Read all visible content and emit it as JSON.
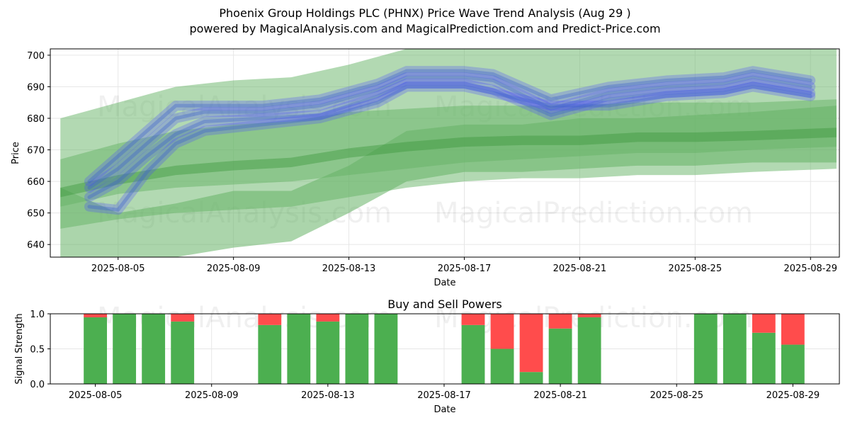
{
  "header": {
    "title_line1": "Phoenix Group Holdings PLC (PHNX) Price Wave Trend Analysis (Aug 29 )",
    "title_line2": "powered by MagicalAnalysis.com and MagicalPrediction.com and Predict-Price.com"
  },
  "watermarks": [
    "MagicalAnalysis.com",
    "MagicalPrediction.com"
  ],
  "colors": {
    "bull": "#4caf50",
    "bear": "#ff4c4c",
    "band": "#66b366",
    "wave": "#4a4aff"
  },
  "chart_data": [
    {
      "type": "area",
      "title": "",
      "xlabel": "Date",
      "ylabel": "Price",
      "ylim": [
        636,
        702
      ],
      "grid": true,
      "x_ticks": [
        "2025-08-05",
        "2025-08-09",
        "2025-08-13",
        "2025-08-17",
        "2025-08-21",
        "2025-08-25",
        "2025-08-29"
      ],
      "y_ticks": [
        640,
        650,
        660,
        670,
        680,
        690,
        700
      ],
      "bands": [
        {
          "name": "",
          "x": [
            "2025-08-03",
            "2025-08-05",
            "2025-08-07",
            "2025-08-09",
            "2025-08-11",
            "2025-08-13",
            "2025-08-15",
            "2025-08-17",
            "2025-08-19",
            "2025-08-21",
            "2025-08-23",
            "2025-08-25",
            "2025-08-27",
            "2025-08-29.9"
          ],
          "upper": [
            680,
            685,
            690,
            692,
            693,
            697,
            702,
            702,
            702,
            702,
            702,
            702,
            702,
            702
          ],
          "lower": [
            652,
            656,
            658,
            659,
            660,
            662,
            664,
            666,
            667,
            668,
            669,
            669,
            670,
            671
          ]
        },
        {
          "name": "",
          "x": [
            "2025-08-03",
            "2025-08-05",
            "2025-08-07",
            "2025-08-09",
            "2025-08-11",
            "2025-08-13",
            "2025-08-15",
            "2025-08-17",
            "2025-08-19",
            "2025-08-21",
            "2025-08-23",
            "2025-08-25",
            "2025-08-27",
            "2025-08-29.9"
          ],
          "upper": [
            667,
            672,
            676,
            678,
            679,
            682,
            683,
            684,
            684,
            684,
            685,
            685,
            685,
            686
          ],
          "lower": [
            645,
            648,
            650,
            651,
            652,
            655,
            658,
            660,
            661,
            661,
            662,
            662,
            663,
            664
          ]
        },
        {
          "name": "",
          "x": [
            "2025-08-03",
            "2025-08-05",
            "2025-08-07",
            "2025-08-09",
            "2025-08-11",
            "2025-08-13",
            "2025-08-15",
            "2025-08-17",
            "2025-08-19",
            "2025-08-21",
            "2025-08-23",
            "2025-08-25",
            "2025-08-27",
            "2025-08-29.9"
          ],
          "upper": [
            658,
            650,
            653,
            657,
            657,
            665,
            676,
            678,
            678,
            680,
            680,
            681,
            682,
            684
          ],
          "lower": [
            635,
            633,
            636,
            639,
            641,
            650,
            660,
            663,
            663,
            664,
            665,
            665,
            666,
            666
          ]
        }
      ],
      "wave_series": [
        {
          "x": [
            "2025-08-04",
            "2025-08-05",
            "2025-08-06",
            "2025-08-07",
            "2025-08-08",
            "2025-08-10",
            "2025-08-12",
            "2025-08-14",
            "2025-08-15",
            "2025-08-17",
            "2025-08-18",
            "2025-08-20",
            "2025-08-22",
            "2025-08-24",
            "2025-08-26",
            "2025-08-27",
            "2025-08-29"
          ],
          "y": [
            658,
            664,
            672,
            680,
            682,
            682,
            684,
            689,
            693,
            693,
            692,
            683,
            688,
            690,
            691,
            693,
            690
          ]
        },
        {
          "x": [
            "2025-08-04",
            "2025-08-05",
            "2025-08-06",
            "2025-08-07",
            "2025-08-08",
            "2025-08-10",
            "2025-08-12",
            "2025-08-14",
            "2025-08-15",
            "2025-08-17",
            "2025-08-18",
            "2025-08-20",
            "2025-08-22",
            "2025-08-24",
            "2025-08-26",
            "2025-08-27",
            "2025-08-29"
          ],
          "y": [
            655,
            660,
            668,
            675,
            679,
            680,
            681,
            687,
            691,
            691,
            689,
            681,
            686,
            688,
            689,
            691,
            688
          ]
        },
        {
          "x": [
            "2025-08-04",
            "2025-08-05",
            "2025-08-06",
            "2025-08-07",
            "2025-08-08",
            "2025-08-10",
            "2025-08-12",
            "2025-08-14",
            "2025-08-15",
            "2025-08-17",
            "2025-08-18",
            "2025-08-20",
            "2025-08-22",
            "2025-08-24",
            "2025-08-26",
            "2025-08-27",
            "2025-08-29"
          ],
          "y": [
            660,
            668,
            676,
            684,
            684,
            684,
            686,
            691,
            695,
            695,
            694,
            686,
            690,
            692,
            693,
            695,
            692
          ]
        },
        {
          "x": [
            "2025-08-04",
            "2025-08-05",
            "2025-08-06",
            "2025-08-07",
            "2025-08-08",
            "2025-08-10",
            "2025-08-12",
            "2025-08-14",
            "2025-08-15",
            "2025-08-17",
            "2025-08-18",
            "2025-08-20",
            "2025-08-22",
            "2025-08-24",
            "2025-08-26",
            "2025-08-27",
            "2025-08-29"
          ],
          "y": [
            652,
            651,
            663,
            672,
            676,
            678,
            680,
            685,
            690,
            690,
            688,
            684,
            684,
            687,
            688,
            690,
            687
          ]
        }
      ]
    },
    {
      "type": "bar",
      "title": "Buy and Sell Powers",
      "xlabel": "Date",
      "ylabel": "Signal Strength",
      "ylim": [
        0,
        1
      ],
      "y_ticks": [
        "0.0",
        "0.5",
        "1.0"
      ],
      "x_ticks": [
        "2025-08-05",
        "2025-08-09",
        "2025-08-13",
        "2025-08-17",
        "2025-08-21",
        "2025-08-25",
        "2025-08-29"
      ],
      "series": [
        {
          "name": "",
          "values": [
            0.95,
            1.0,
            1.0,
            0.89,
            0.84,
            1.0,
            0.89,
            1.0,
            1.0,
            0.84,
            0.5,
            0.17,
            0.79,
            0.95,
            1.0,
            1.0,
            0.73,
            0.56
          ]
        },
        {
          "name": "",
          "values": [
            0.05,
            0.0,
            0.0,
            0.11,
            0.16,
            0.0,
            0.11,
            0.0,
            0.0,
            0.16,
            0.5,
            0.83,
            0.21,
            0.05,
            0.0,
            0.0,
            0.27,
            0.44
          ]
        }
      ],
      "categories": [
        "2025-08-05",
        "2025-08-06",
        "2025-08-07",
        "2025-08-08",
        "2025-08-11",
        "2025-08-12",
        "2025-08-13",
        "2025-08-14",
        "2025-08-15",
        "2025-08-18",
        "2025-08-19",
        "2025-08-20",
        "2025-08-21",
        "2025-08-22",
        "2025-08-26",
        "2025-08-27",
        "2025-08-28",
        "2025-08-29"
      ]
    }
  ]
}
